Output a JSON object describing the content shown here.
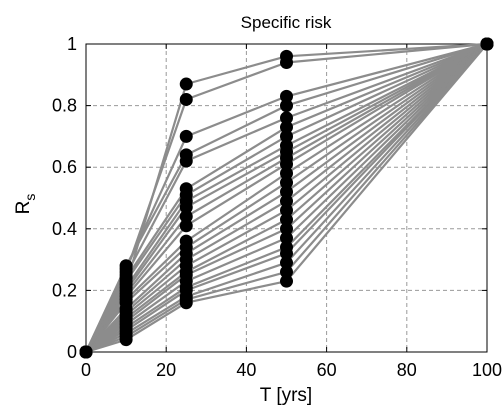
{
  "chart_data": {
    "type": "line",
    "title": "Specific risk",
    "xlabel": "T [yrs]",
    "ylabel": "R",
    "ylabel_sub": "s",
    "xlim": [
      0,
      100
    ],
    "ylim": [
      0,
      1
    ],
    "xticks": [
      "0",
      "20",
      "40",
      "60",
      "80",
      "100"
    ],
    "yticks": [
      "0",
      "0.2",
      "0.4",
      "0.6",
      "0.8",
      "1"
    ],
    "grid": true,
    "line_color": "#8c8c8c",
    "marker_color": "#000000",
    "x": [
      0,
      10,
      25,
      50,
      100
    ],
    "series": [
      {
        "values": [
          0,
          0.04,
          0.16,
          0.23,
          1
        ]
      },
      {
        "values": [
          0,
          0.05,
          0.17,
          0.26,
          1
        ]
      },
      {
        "values": [
          0,
          0.06,
          0.18,
          0.29,
          1
        ]
      },
      {
        "values": [
          0,
          0.07,
          0.2,
          0.32,
          1
        ]
      },
      {
        "values": [
          0,
          0.08,
          0.21,
          0.34,
          1
        ]
      },
      {
        "values": [
          0,
          0.09,
          0.23,
          0.37,
          1
        ]
      },
      {
        "values": [
          0,
          0.1,
          0.25,
          0.4,
          1
        ]
      },
      {
        "values": [
          0,
          0.11,
          0.26,
          0.43,
          1
        ]
      },
      {
        "values": [
          0,
          0.12,
          0.28,
          0.46,
          1
        ]
      },
      {
        "values": [
          0,
          0.13,
          0.3,
          0.49,
          1
        ]
      },
      {
        "values": [
          0,
          0.14,
          0.32,
          0.52,
          1
        ]
      },
      {
        "values": [
          0,
          0.16,
          0.34,
          0.55,
          1
        ]
      },
      {
        "values": [
          0,
          0.17,
          0.36,
          0.58,
          1
        ]
      },
      {
        "values": [
          0,
          0.18,
          0.41,
          0.61,
          1
        ]
      },
      {
        "values": [
          0,
          0.19,
          0.44,
          0.63,
          1
        ]
      },
      {
        "values": [
          0,
          0.2,
          0.47,
          0.65,
          1
        ]
      },
      {
        "values": [
          0,
          0.21,
          0.49,
          0.67,
          1
        ]
      },
      {
        "values": [
          0,
          0.23,
          0.51,
          0.7,
          1
        ]
      },
      {
        "values": [
          0,
          0.24,
          0.53,
          0.73,
          1
        ]
      },
      {
        "values": [
          0,
          0.25,
          0.62,
          0.76,
          1
        ]
      },
      {
        "values": [
          0,
          0.28,
          0.64,
          0.8,
          1
        ]
      },
      {
        "values": [
          0,
          0.27,
          0.7,
          0.83,
          1
        ]
      },
      {
        "values": [
          0,
          0.26,
          0.82,
          0.94,
          1
        ]
      },
      {
        "values": [
          0,
          0.22,
          0.87,
          0.96,
          1
        ]
      }
    ]
  }
}
